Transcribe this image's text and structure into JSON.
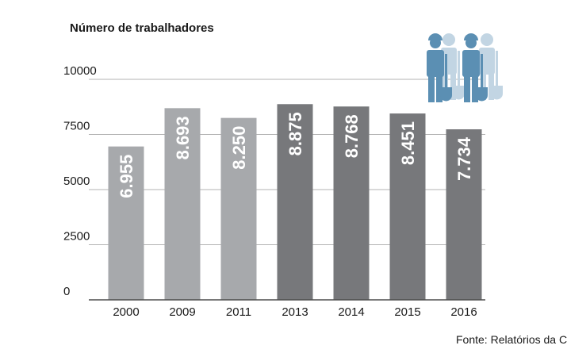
{
  "chart_data": {
    "type": "bar",
    "title": "Número de trabalhadores",
    "categories": [
      "2000",
      "2009",
      "2011",
      "2013",
      "2014",
      "2015",
      "2016"
    ],
    "values": [
      6955,
      8693,
      8250,
      8875,
      8768,
      8451,
      7734
    ],
    "value_labels": [
      "6.955",
      "8.693",
      "8.250",
      "8.875",
      "8.768",
      "8.451",
      "7.734"
    ],
    "yticks": [
      0,
      2500,
      5000,
      7500,
      10000
    ],
    "ylim": [
      0,
      10000
    ],
    "grid": true,
    "xlabel": "",
    "ylabel": "",
    "source": "Fonte: Relatórios da Ci",
    "colors": {
      "light_bar": "#a7a9ac",
      "dark_bar": "#77787b",
      "grid": "#b3b3b3",
      "axis": "#4d4d4d",
      "icon_front": "#5b8fb3",
      "icon_back": "#c2d5e3"
    },
    "bar_shade": [
      "light",
      "light",
      "light",
      "dark",
      "dark",
      "dark",
      "dark"
    ],
    "icon": "workers-with-shovels-icon"
  }
}
